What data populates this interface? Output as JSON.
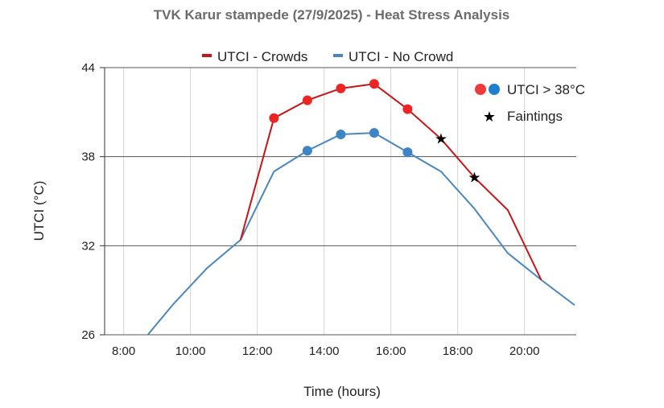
{
  "chart_data": {
    "type": "line",
    "title": "TVK Karur stampede (27/9/2025) - Heat Stress Analysis",
    "xlabel": "Time (hours)",
    "ylabel": "UTCI (°C)",
    "xlim": [
      7.43,
      21.55
    ],
    "ylim": [
      26,
      44
    ],
    "x_ticks": [
      8,
      10,
      12,
      14,
      16,
      18,
      20
    ],
    "x_tick_labels": [
      "8:00",
      "10:00",
      "12:00",
      "14:00",
      "16:00",
      "18:00",
      "20:00"
    ],
    "y_ticks": [
      26,
      32,
      38,
      44
    ],
    "y_tick_labels": [
      "26",
      "32",
      "38",
      "44"
    ],
    "grid": true,
    "legend_position": "top",
    "series": [
      {
        "name": "UTCI - Crowds",
        "color": "#c81414",
        "marker_color": "#ec2424",
        "x": [
          11.5,
          12.5,
          13.5,
          14.5,
          15.5,
          16.5,
          17.5,
          18.5,
          19.5,
          20.5
        ],
        "values": [
          32.4,
          40.6,
          41.8,
          42.6,
          42.9,
          41.2,
          39.2,
          36.6,
          34.4,
          29.7
        ],
        "markers_at": [
          12.5,
          13.5,
          14.5,
          15.5,
          16.5
        ]
      },
      {
        "name": "UTCI - No Crowd",
        "color": "#4a86c0",
        "marker_color": "#3d85c6",
        "x": [
          8.5,
          9.5,
          10.5,
          11.5,
          12.5,
          13.5,
          14.5,
          15.5,
          16.5,
          17.5,
          18.5,
          19.5,
          20.5,
          21.5
        ],
        "values": [
          25.4,
          28.1,
          30.5,
          32.4,
          37.0,
          38.4,
          39.5,
          39.6,
          38.3,
          37.0,
          34.5,
          31.5,
          29.7,
          28.0
        ],
        "markers_at": [
          13.5,
          14.5,
          15.5,
          16.5
        ]
      }
    ],
    "faintings": {
      "x": [
        17.5,
        18.5
      ],
      "values": [
        39.2,
        36.6
      ]
    },
    "annotations": {
      "threshold_label": "UTCI > 38°C",
      "faintings_label": "Faintings"
    }
  }
}
